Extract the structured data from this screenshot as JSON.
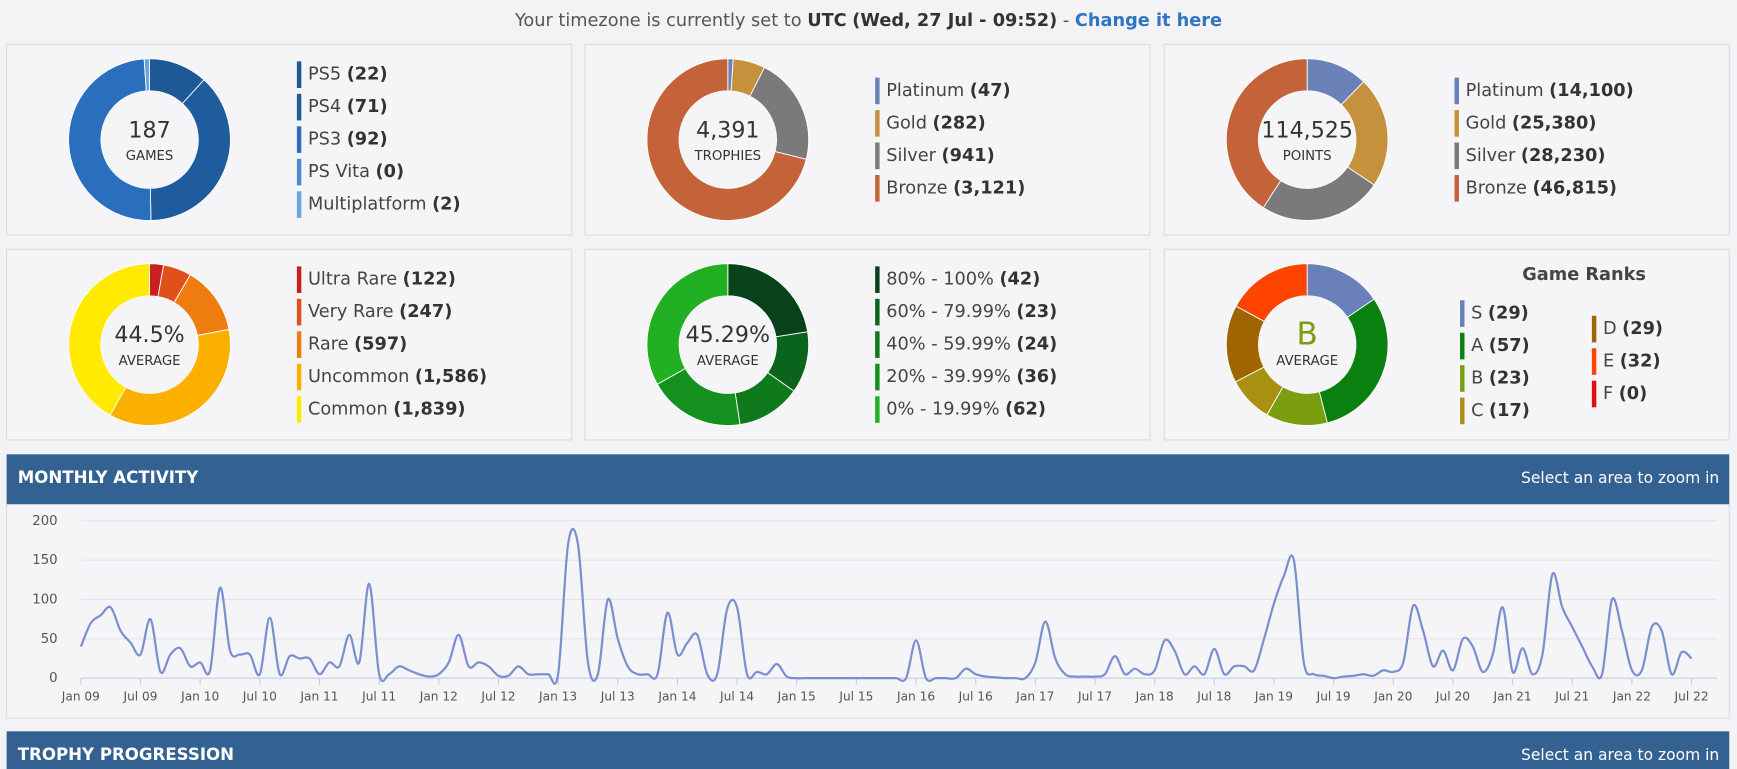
{
  "header": {
    "text": "Your timezone is currently set to",
    "timezone": "UTC",
    "time": "(Wed, 27 Jul - 09:52)",
    "separator": "-",
    "link": "Change it here"
  },
  "chart_data": [
    {
      "type": "donut",
      "center_value": "187",
      "center_label": "GAMES",
      "labels": [
        "PS5",
        "PS4",
        "PS3",
        "PS Vita",
        "Multiplatform"
      ],
      "values": [
        22,
        71,
        92,
        0,
        2
      ],
      "value_labels": [
        "(22)",
        "(71)",
        "(92)",
        "(0)",
        "(2)"
      ],
      "colors": [
        "#1d5897",
        "#1e5c9e",
        "#2a6fbd",
        "#4a8ad0",
        "#6aa6e0"
      ]
    },
    {
      "type": "donut",
      "center_value": "4,391",
      "center_label": "TROPHIES",
      "labels": [
        "Platinum",
        "Gold",
        "Silver",
        "Bronze"
      ],
      "values": [
        47,
        282,
        941,
        3121
      ],
      "value_labels": [
        "(47)",
        "(282)",
        "(941)",
        "(3,121)"
      ],
      "colors": [
        "#6a82b8",
        "#c6913c",
        "#7a7a7a",
        "#c4623a"
      ]
    },
    {
      "type": "donut",
      "center_value": "114,525",
      "center_label": "POINTS",
      "labels": [
        "Platinum",
        "Gold",
        "Silver",
        "Bronze"
      ],
      "values": [
        14100,
        25380,
        28230,
        46815
      ],
      "value_labels": [
        "(14,100)",
        "(25,380)",
        "(28,230)",
        "(46,815)"
      ],
      "colors": [
        "#6a82b8",
        "#c6913c",
        "#7a7a7a",
        "#c4623a"
      ]
    },
    {
      "type": "donut",
      "center_value": "44.5%",
      "center_label": "AVERAGE",
      "labels": [
        "Ultra Rare",
        "Very Rare",
        "Rare",
        "Uncommon",
        "Common"
      ],
      "values": [
        122,
        247,
        597,
        1586,
        1839
      ],
      "value_labels": [
        "(122)",
        "(247)",
        "(597)",
        "(1,586)",
        "(1,839)"
      ],
      "colors": [
        "#c8201e",
        "#e0501a",
        "#ee7c0e",
        "#fbb000",
        "#ffea00"
      ]
    },
    {
      "type": "donut",
      "center_value": "45.29%",
      "center_label": "AVERAGE",
      "labels": [
        "80% - 100%",
        "60% - 79.99%",
        "40% - 59.99%",
        "20% - 39.99%",
        "0% - 19.99%"
      ],
      "values": [
        42,
        23,
        24,
        36,
        62
      ],
      "value_labels": [
        "(42)",
        "(23)",
        "(24)",
        "(36)",
        "(62)"
      ],
      "colors": [
        "#07421a",
        "#0b641c",
        "#0f7a1c",
        "#14901e",
        "#22b023"
      ]
    },
    {
      "type": "donut",
      "title": "Game Ranks",
      "center_value": "B",
      "center_label": "AVERAGE",
      "center_color": "#7a9e10",
      "labels": [
        "S",
        "A",
        "B",
        "C",
        "D",
        "E",
        "F"
      ],
      "values": [
        29,
        57,
        23,
        17,
        29,
        32,
        0
      ],
      "value_labels": [
        "(29)",
        "(57)",
        "(23)",
        "(17)",
        "(29)",
        "(32)",
        "(0)"
      ],
      "colors": [
        "#6a80b8",
        "#0a8010",
        "#7a9e10",
        "#a89010",
        "#a06400",
        "#ff4400",
        "#e01010"
      ]
    },
    {
      "type": "line",
      "color": "#7b8fd0",
      "ylim": [
        0,
        200
      ],
      "yticks": [
        0,
        50,
        100,
        150,
        200
      ],
      "grid": true,
      "categories": [
        "Jan 09",
        null,
        null,
        null,
        null,
        null,
        "Jul 09",
        null,
        null,
        null,
        null,
        null,
        "Jan 10",
        null,
        null,
        null,
        null,
        null,
        "Jul 10",
        null,
        null,
        null,
        null,
        null,
        "Jan 11",
        null,
        null,
        null,
        null,
        null,
        "Jul 11",
        null,
        null,
        null,
        null,
        null,
        "Jan 12",
        null,
        null,
        null,
        null,
        null,
        "Jul 12",
        null,
        null,
        null,
        null,
        null,
        "Jan 13",
        null,
        null,
        null,
        null,
        null,
        "Jul 13",
        null,
        null,
        null,
        null,
        null,
        "Jan 14",
        null,
        null,
        null,
        null,
        null,
        "Jul 14",
        null,
        null,
        null,
        null,
        null,
        "Jan 15",
        null,
        null,
        null,
        null,
        null,
        "Jul 15",
        null,
        null,
        null,
        null,
        null,
        "Jan 16",
        null,
        null,
        null,
        null,
        null,
        "Jul 16",
        null,
        null,
        null,
        null,
        null,
        "Jan 17",
        null,
        null,
        null,
        null,
        null,
        "Jul 17",
        null,
        null,
        null,
        null,
        null,
        "Jan 18",
        null,
        null,
        null,
        null,
        null,
        "Jul 18",
        null,
        null,
        null,
        null,
        null,
        "Jan 19",
        null,
        null,
        null,
        null,
        null,
        "Jul 19",
        null,
        null,
        null,
        null,
        null,
        "Jan 20",
        null,
        null,
        null,
        null,
        null,
        "Jul 20",
        null,
        null,
        null,
        null,
        null,
        "Jan 21",
        null,
        null,
        null,
        null,
        null,
        "Jul 21",
        null,
        null,
        null,
        null,
        null,
        "Jan 22",
        null,
        null,
        null,
        null,
        null,
        "Jul 22"
      ],
      "values": [
        40,
        70,
        80,
        90,
        60,
        45,
        30,
        75,
        8,
        30,
        38,
        15,
        20,
        10,
        115,
        35,
        30,
        30,
        5,
        77,
        5,
        28,
        25,
        25,
        5,
        20,
        15,
        55,
        20,
        120,
        5,
        5,
        15,
        10,
        5,
        2,
        5,
        20,
        55,
        15,
        20,
        15,
        3,
        3,
        15,
        5,
        5,
        5,
        5,
        170,
        170,
        20,
        5,
        100,
        50,
        15,
        5,
        5,
        5,
        83,
        30,
        45,
        55,
        5,
        5,
        88,
        90,
        5,
        8,
        5,
        18,
        2,
        0,
        0,
        0,
        0,
        0,
        0,
        0,
        0,
        0,
        0,
        0,
        0,
        48,
        0,
        0,
        0,
        0,
        12,
        5,
        2,
        1,
        0,
        0,
        0,
        20,
        72,
        25,
        5,
        2,
        2,
        2,
        5,
        28,
        5,
        12,
        5,
        10,
        48,
        35,
        5,
        15,
        5,
        37,
        5,
        15,
        15,
        10,
        50,
        95,
        130,
        150,
        20,
        5,
        3,
        0,
        2,
        3,
        5,
        3,
        10,
        8,
        20,
        92,
        60,
        15,
        35,
        10,
        50,
        40,
        8,
        30,
        90,
        8,
        38,
        5,
        30,
        132,
        90,
        65,
        40,
        15,
        5,
        100,
        60,
        10,
        10,
        65,
        60,
        5,
        33,
        25
      ]
    }
  ],
  "sections": [
    {
      "title": "MONTHLY ACTIVITY",
      "hint": "Select an area to zoom in"
    },
    {
      "title": "TROPHY PROGRESSION",
      "hint": "Select an area to zoom in"
    }
  ]
}
